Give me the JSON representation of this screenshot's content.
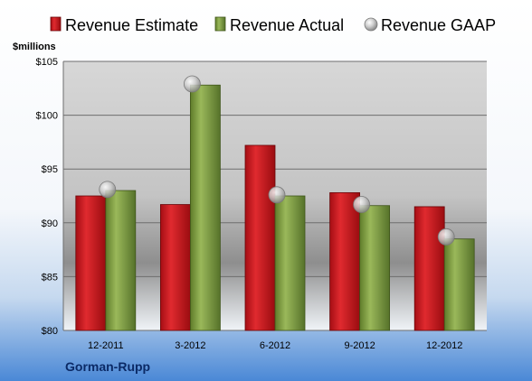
{
  "chart_data": {
    "type": "bar",
    "categories": [
      "12-2011",
      "3-2012",
      "6-2012",
      "9-2012",
      "12-2012"
    ],
    "series": [
      {
        "name": "Revenue Estimate",
        "kind": "bar",
        "color": "#c8141c",
        "values": [
          92.5,
          91.7,
          97.2,
          92.8,
          91.5
        ]
      },
      {
        "name": "Revenue Actual",
        "kind": "bar",
        "color": "#7a9a3c",
        "values": [
          93.0,
          102.8,
          92.5,
          91.6,
          88.5
        ]
      },
      {
        "name": "Revenue GAAP",
        "kind": "marker",
        "color": "#b8b8b8",
        "values": [
          93.1,
          102.9,
          92.6,
          91.7,
          88.7
        ]
      }
    ],
    "ylabel": "$millions",
    "ylim": [
      80,
      105
    ],
    "yticks": [
      80,
      85,
      90,
      95,
      100,
      105
    ],
    "ytick_labels": [
      "$80",
      "$85",
      "$90",
      "$95",
      "$100",
      "$105"
    ],
    "grid": true,
    "legend_position": "top",
    "company": "Gorman-Rupp"
  }
}
